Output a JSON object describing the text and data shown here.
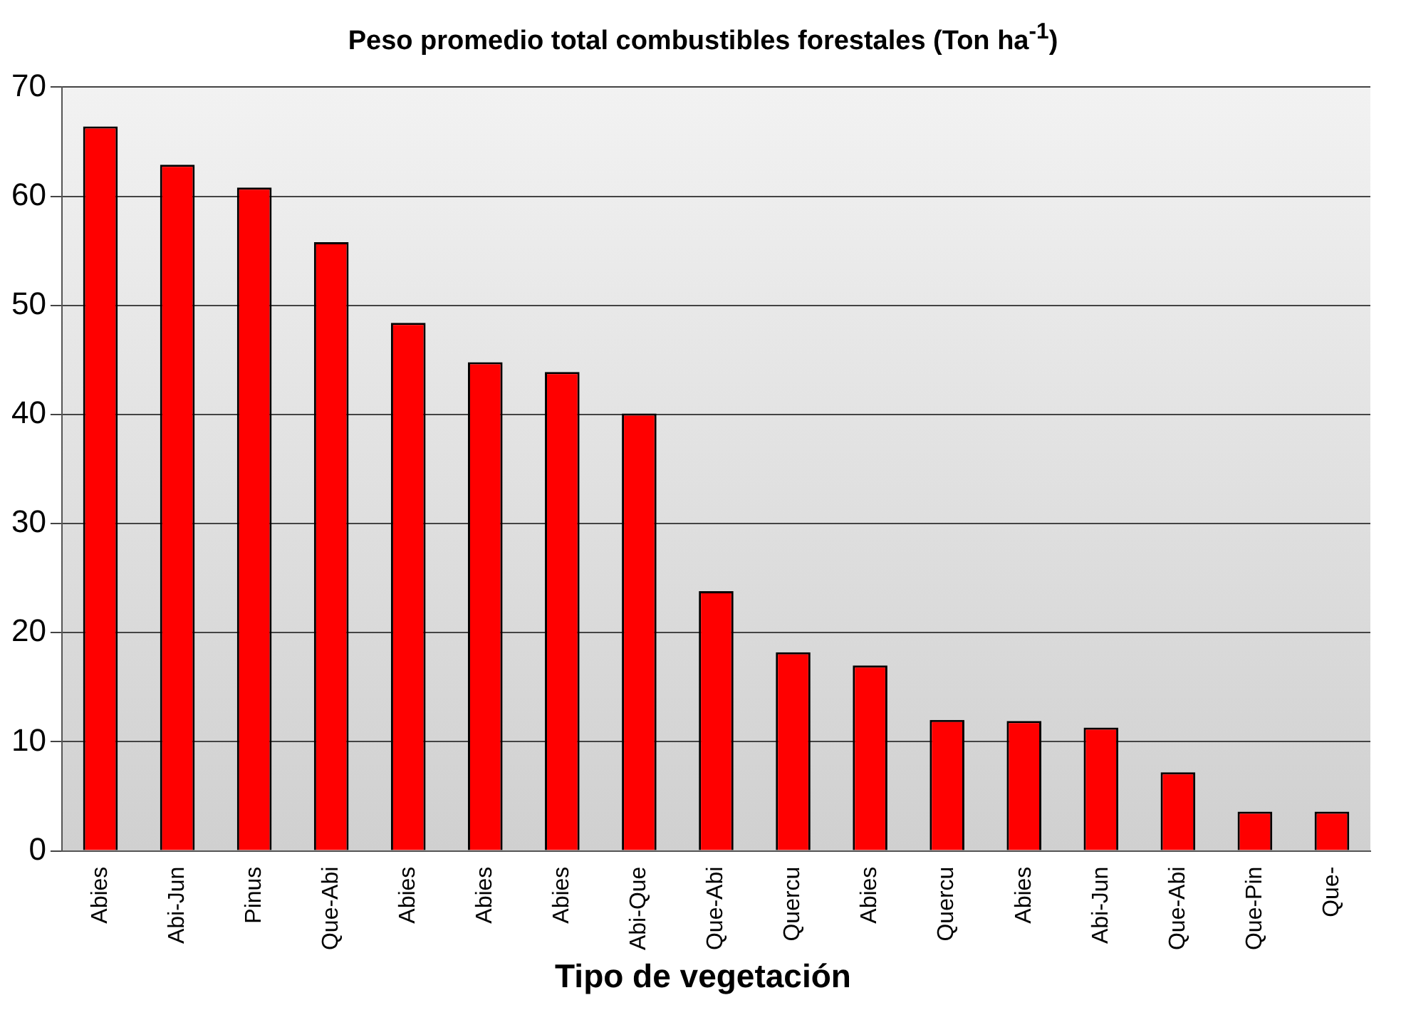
{
  "chart_data": {
    "type": "bar",
    "title": "Peso promedio total combustibles forestales (Ton ha$^{-1}$)",
    "xlabel": "Tipo de vegetación",
    "categories": [
      "Abies",
      "Abi-Jun",
      "Pinus",
      "Que-Abi",
      "Abies",
      "Abies",
      "Abies",
      "Abi-Que",
      "Que-Abi",
      "Quercu",
      "Abies",
      "Quercu",
      "Abies",
      "Abi-Jun",
      "Que-Abi",
      "Que-Pin",
      "Que-"
    ],
    "values": [
      66.4,
      62.9,
      60.8,
      55.8,
      48.4,
      44.8,
      43.9,
      40.1,
      23.8,
      18.2,
      17.0,
      12.0,
      11.9,
      11.3,
      7.2,
      3.6,
      3.6
    ],
    "color": "#ff0000",
    "ylim": [
      0,
      70
    ],
    "yticks": [
      0,
      10,
      20,
      30,
      40,
      50,
      60,
      70
    ],
    "grid": "y",
    "legend": false
  }
}
